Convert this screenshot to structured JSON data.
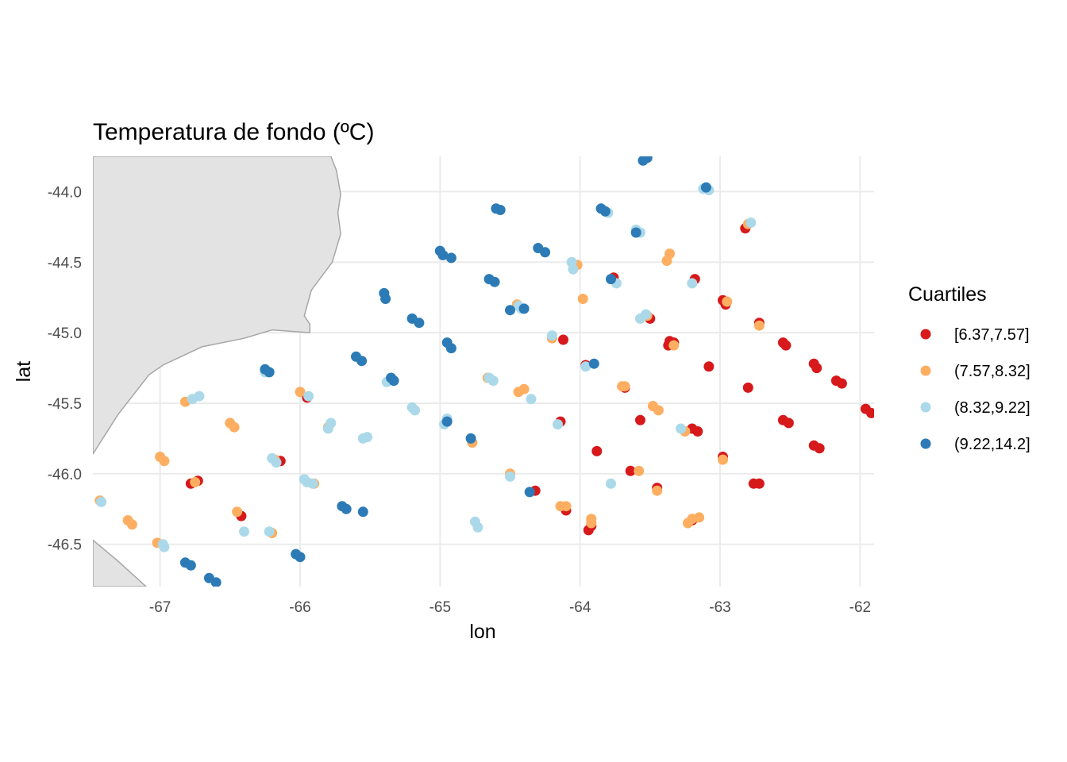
{
  "chart_data": {
    "type": "scatter",
    "title": "Temperatura de fondo (ºC)",
    "xlabel": "lon",
    "ylabel": "lat",
    "xlim": [
      -67.48,
      -61.9
    ],
    "ylim": [
      -46.8,
      -43.75
    ],
    "x_ticks": [
      -67,
      -66,
      -65,
      -64,
      -63,
      -62
    ],
    "x_tick_labels": [
      "-67",
      "-66",
      "-65",
      "-64",
      "-63",
      "-62"
    ],
    "y_ticks": [
      -44.0,
      -44.5,
      -45.0,
      -45.5,
      -46.0,
      -46.5
    ],
    "y_tick_labels": [
      "-44.0",
      "-44.5",
      "-45.0",
      "-45.5",
      "-46.0",
      "-46.5"
    ],
    "grid": true,
    "legend": {
      "title": "Cuartiles",
      "position": "right",
      "entries": [
        {
          "label": "[6.37,7.57]",
          "color": "#d7191c"
        },
        {
          "label": "(7.57,8.32]",
          "color": "#fdae61"
        },
        {
          "label": "(8.32,9.22]",
          "color": "#abd9e9"
        },
        {
          "label": "(9.22,14.2]",
          "color": "#2c7bb6"
        }
      ]
    },
    "land": [
      {
        "name": "coast-main",
        "color": "#e3e3e3",
        "coords": [
          [
            -67.48,
            -43.75
          ],
          [
            -65.78,
            -43.75
          ],
          [
            -65.74,
            -43.85
          ],
          [
            -65.71,
            -44.02
          ],
          [
            -65.73,
            -44.15
          ],
          [
            -65.71,
            -44.3
          ],
          [
            -65.77,
            -44.5
          ],
          [
            -65.92,
            -44.7
          ],
          [
            -65.97,
            -44.88
          ],
          [
            -65.93,
            -44.94
          ],
          [
            -65.93,
            -45.0
          ],
          [
            -66.2,
            -44.98
          ],
          [
            -66.4,
            -45.04
          ],
          [
            -66.7,
            -45.1
          ],
          [
            -66.98,
            -45.23
          ],
          [
            -67.08,
            -45.3
          ],
          [
            -67.3,
            -45.58
          ],
          [
            -67.48,
            -45.86
          ]
        ]
      },
      {
        "name": "coast-south",
        "color": "#e3e3e3",
        "coords": [
          [
            -67.48,
            -46.47
          ],
          [
            -67.3,
            -46.62
          ],
          [
            -67.1,
            -46.8
          ],
          [
            -67.48,
            -46.8
          ]
        ]
      }
    ],
    "series": [
      {
        "name": "[6.37,7.57]",
        "color": "#d7191c",
        "points": [
          [
            -66.78,
            -46.07
          ],
          [
            -66.73,
            -46.05
          ],
          [
            -66.14,
            -45.91
          ],
          [
            -66.42,
            -46.3
          ],
          [
            -65.95,
            -45.46
          ],
          [
            -64.14,
            -45.63
          ],
          [
            -64.12,
            -45.05
          ],
          [
            -64.1,
            -46.26
          ],
          [
            -63.96,
            -45.23
          ],
          [
            -63.92,
            -46.37
          ],
          [
            -63.94,
            -46.4
          ],
          [
            -63.88,
            -45.84
          ],
          [
            -63.76,
            -44.61
          ],
          [
            -63.68,
            -45.39
          ],
          [
            -63.64,
            -45.98
          ],
          [
            -63.57,
            -45.62
          ],
          [
            -63.5,
            -44.9
          ],
          [
            -63.45,
            -46.1
          ],
          [
            -63.37,
            -45.09
          ],
          [
            -63.33,
            -45.07
          ],
          [
            -63.18,
            -44.62
          ],
          [
            -63.2,
            -45.68
          ],
          [
            -63.16,
            -45.7
          ],
          [
            -63.2,
            -46.33
          ],
          [
            -63.08,
            -45.24
          ],
          [
            -62.98,
            -44.77
          ],
          [
            -62.96,
            -44.8
          ],
          [
            -62.98,
            -45.88
          ],
          [
            -62.8,
            -45.39
          ],
          [
            -62.82,
            -44.26
          ],
          [
            -62.72,
            -44.93
          ],
          [
            -62.72,
            -46.07
          ],
          [
            -62.76,
            -46.07
          ],
          [
            -62.55,
            -45.07
          ],
          [
            -62.53,
            -45.09
          ],
          [
            -62.55,
            -45.62
          ],
          [
            -62.51,
            -45.64
          ],
          [
            -62.33,
            -45.22
          ],
          [
            -62.31,
            -45.25
          ],
          [
            -62.33,
            -45.8
          ],
          [
            -62.29,
            -45.82
          ],
          [
            -62.17,
            -45.34
          ],
          [
            -62.13,
            -45.36
          ],
          [
            -61.96,
            -45.54
          ],
          [
            -61.92,
            -45.57
          ],
          [
            -64.32,
            -46.12
          ],
          [
            -63.36,
            -45.06
          ]
        ]
      },
      {
        "name": "(7.57,8.32]",
        "color": "#fdae61",
        "points": [
          [
            -67.43,
            -46.19
          ],
          [
            -67.23,
            -46.33
          ],
          [
            -67.2,
            -46.36
          ],
          [
            -67.0,
            -45.88
          ],
          [
            -66.97,
            -45.91
          ],
          [
            -67.02,
            -46.49
          ],
          [
            -66.82,
            -45.49
          ],
          [
            -66.75,
            -46.06
          ],
          [
            -66.5,
            -45.64
          ],
          [
            -66.47,
            -45.67
          ],
          [
            -66.45,
            -46.27
          ],
          [
            -66.2,
            -46.42
          ],
          [
            -66.18,
            -45.9
          ],
          [
            -66.0,
            -45.42
          ],
          [
            -65.9,
            -46.07
          ],
          [
            -65.8,
            -45.67
          ],
          [
            -64.77,
            -45.78
          ],
          [
            -64.66,
            -45.32
          ],
          [
            -64.5,
            -46.0
          ],
          [
            -64.44,
            -45.42
          ],
          [
            -64.4,
            -45.4
          ],
          [
            -64.45,
            -44.8
          ],
          [
            -64.2,
            -45.04
          ],
          [
            -64.14,
            -46.23
          ],
          [
            -64.1,
            -46.23
          ],
          [
            -64.02,
            -44.52
          ],
          [
            -63.98,
            -44.76
          ],
          [
            -63.92,
            -46.35
          ],
          [
            -63.92,
            -46.32
          ],
          [
            -63.7,
            -45.38
          ],
          [
            -63.68,
            -45.38
          ],
          [
            -63.58,
            -45.98
          ],
          [
            -63.52,
            -44.88
          ],
          [
            -63.45,
            -46.12
          ],
          [
            -63.48,
            -45.52
          ],
          [
            -63.44,
            -45.55
          ],
          [
            -63.36,
            -44.44
          ],
          [
            -63.38,
            -44.49
          ],
          [
            -63.33,
            -45.09
          ],
          [
            -63.23,
            -46.35
          ],
          [
            -63.2,
            -46.32
          ],
          [
            -63.15,
            -46.31
          ],
          [
            -62.98,
            -45.9
          ],
          [
            -62.95,
            -44.78
          ],
          [
            -62.8,
            -44.23
          ],
          [
            -62.72,
            -44.95
          ],
          [
            -63.25,
            -45.7
          ]
        ]
      },
      {
        "name": "(8.32,9.22]",
        "color": "#abd9e9",
        "points": [
          [
            -67.42,
            -46.2
          ],
          [
            -66.98,
            -46.5
          ],
          [
            -66.97,
            -46.52
          ],
          [
            -66.77,
            -45.47
          ],
          [
            -66.72,
            -45.45
          ],
          [
            -66.4,
            -46.41
          ],
          [
            -66.25,
            -45.28
          ],
          [
            -66.22,
            -46.41
          ],
          [
            -66.2,
            -45.89
          ],
          [
            -66.17,
            -45.92
          ],
          [
            -65.97,
            -46.04
          ],
          [
            -65.94,
            -45.45
          ],
          [
            -65.95,
            -46.06
          ],
          [
            -65.91,
            -46.07
          ],
          [
            -65.8,
            -45.68
          ],
          [
            -65.78,
            -45.64
          ],
          [
            -65.55,
            -45.75
          ],
          [
            -65.52,
            -45.74
          ],
          [
            -65.38,
            -45.35
          ],
          [
            -65.2,
            -45.53
          ],
          [
            -65.18,
            -45.55
          ],
          [
            -64.95,
            -45.61
          ],
          [
            -64.97,
            -45.65
          ],
          [
            -64.75,
            -46.34
          ],
          [
            -64.73,
            -46.38
          ],
          [
            -64.65,
            -45.32
          ],
          [
            -64.62,
            -45.34
          ],
          [
            -64.5,
            -46.02
          ],
          [
            -64.35,
            -45.47
          ],
          [
            -64.42,
            -44.83
          ],
          [
            -64.44,
            -44.81
          ],
          [
            -64.2,
            -45.02
          ],
          [
            -64.16,
            -45.65
          ],
          [
            -64.06,
            -44.5
          ],
          [
            -64.05,
            -44.55
          ],
          [
            -63.96,
            -45.24
          ],
          [
            -63.8,
            -44.15
          ],
          [
            -63.78,
            -46.07
          ],
          [
            -63.74,
            -44.65
          ],
          [
            -63.6,
            -44.27
          ],
          [
            -63.57,
            -44.29
          ],
          [
            -63.57,
            -44.9
          ],
          [
            -63.53,
            -44.87
          ],
          [
            -63.2,
            -44.65
          ],
          [
            -63.12,
            -43.98
          ],
          [
            -63.08,
            -43.99
          ],
          [
            -62.78,
            -44.22
          ],
          [
            -63.28,
            -45.68
          ]
        ]
      },
      {
        "name": "(9.22,14.2]",
        "color": "#2c7bb6",
        "points": [
          [
            -66.82,
            -46.63
          ],
          [
            -66.78,
            -46.65
          ],
          [
            -66.65,
            -46.74
          ],
          [
            -66.6,
            -46.77
          ],
          [
            -66.25,
            -45.26
          ],
          [
            -66.22,
            -45.28
          ],
          [
            -66.03,
            -46.57
          ],
          [
            -66.0,
            -46.59
          ],
          [
            -65.7,
            -46.23
          ],
          [
            -65.67,
            -46.25
          ],
          [
            -65.55,
            -46.27
          ],
          [
            -65.6,
            -45.17
          ],
          [
            -65.56,
            -45.2
          ],
          [
            -65.4,
            -44.72
          ],
          [
            -65.39,
            -44.76
          ],
          [
            -65.35,
            -45.32
          ],
          [
            -65.33,
            -45.34
          ],
          [
            -65.2,
            -44.9
          ],
          [
            -65.15,
            -44.93
          ],
          [
            -65.0,
            -44.42
          ],
          [
            -64.98,
            -44.45
          ],
          [
            -64.92,
            -44.47
          ],
          [
            -64.95,
            -45.07
          ],
          [
            -64.92,
            -45.11
          ],
          [
            -64.95,
            -45.63
          ],
          [
            -64.78,
            -45.75
          ],
          [
            -64.65,
            -44.62
          ],
          [
            -64.61,
            -44.64
          ],
          [
            -64.6,
            -44.12
          ],
          [
            -64.57,
            -44.13
          ],
          [
            -64.5,
            -44.84
          ],
          [
            -64.4,
            -44.83
          ],
          [
            -64.36,
            -46.13
          ],
          [
            -64.3,
            -44.4
          ],
          [
            -64.25,
            -44.43
          ],
          [
            -63.9,
            -45.22
          ],
          [
            -63.85,
            -44.12
          ],
          [
            -63.82,
            -44.14
          ],
          [
            -63.6,
            -44.29
          ],
          [
            -63.55,
            -43.78
          ],
          [
            -63.52,
            -43.76
          ],
          [
            -63.78,
            -44.62
          ],
          [
            -63.1,
            -43.97
          ]
        ]
      }
    ]
  }
}
